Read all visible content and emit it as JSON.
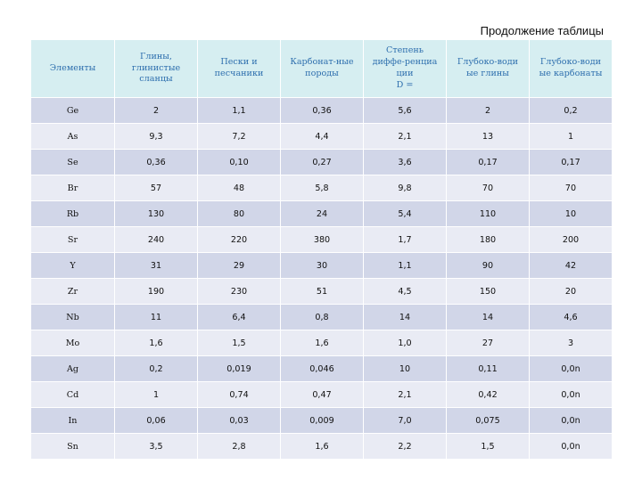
{
  "caption": "Продолжение таблицы",
  "headers": [
    [
      "Элементы"
    ],
    [
      "Глины,",
      "глинистые",
      "сланцы"
    ],
    [
      "Пески и",
      "песчаники"
    ],
    [
      "Карбонат-ные",
      "породы"
    ],
    [
      "Степень",
      "диффе-ренциа",
      "ции",
      "D ="
    ],
    [
      "Глубоко-води",
      "ые глины"
    ],
    [
      "Глубоко-води",
      "ые карбонаты"
    ]
  ],
  "rows": [
    [
      "Ge",
      "2",
      "1,1",
      "0,36",
      "5,6",
      "2",
      "0,2"
    ],
    [
      "As",
      "9,3",
      "7,2",
      "4,4",
      "2,1",
      "13",
      "1"
    ],
    [
      "Se",
      "0,36",
      "0,10",
      "0,27",
      "3,6",
      "0,17",
      "0,17"
    ],
    [
      "Br",
      "57",
      "48",
      "5,8",
      "9,8",
      "70",
      "70"
    ],
    [
      "Rb",
      "130",
      "80",
      "24",
      "5,4",
      "110",
      "10"
    ],
    [
      "Sr",
      "240",
      "220",
      "380",
      "1,7",
      "180",
      "200"
    ],
    [
      "Y",
      "31",
      "29",
      "30",
      "1,1",
      "90",
      "42"
    ],
    [
      "Zr",
      "190",
      "230",
      "51",
      "4,5",
      "150",
      "20"
    ],
    [
      "Nb",
      "11",
      "6,4",
      "0,8",
      "14",
      "14",
      "4,6"
    ],
    [
      "Mo",
      "1,6",
      "1,5",
      "1,6",
      "1,0",
      "27",
      "3"
    ],
    [
      "Ag",
      "0,2",
      "0,019",
      "0,046",
      "10",
      "0,11",
      "0,0n"
    ],
    [
      "Cd",
      "1",
      "0,74",
      "0,47",
      "2,1",
      "0,42",
      "0,0n"
    ],
    [
      "In",
      "0,06",
      "0,03",
      "0,009",
      "7,0",
      "0,075",
      "0,0n"
    ],
    [
      "Sn",
      "3,5",
      "2,8",
      "1,6",
      "2,2",
      "1,5",
      "0,0n"
    ]
  ]
}
